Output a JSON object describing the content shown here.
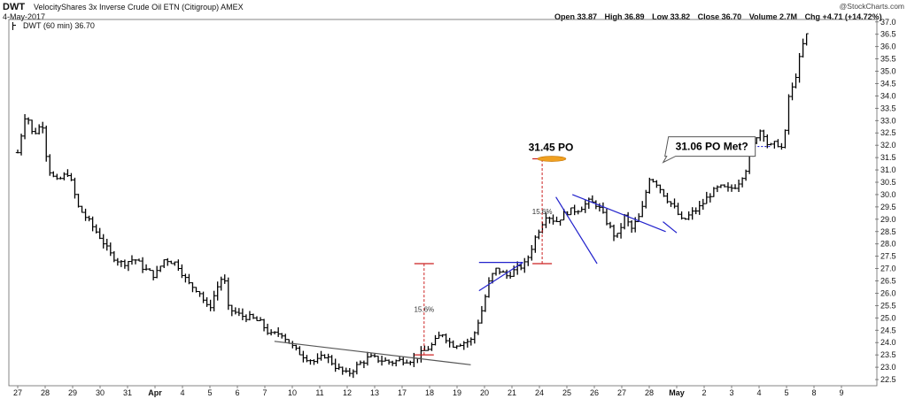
{
  "header": {
    "ticker": "DWT",
    "company": "VelocityShares 3x Inverse Crude Oil ETN (Citigroup)  AMEX",
    "date": "4-May-2017",
    "copyright": "@StockCharts.com",
    "legend": "DWT (60 min) 36.70",
    "ohlc": {
      "open": "Open 33.87",
      "high": "High 36.89",
      "low": "Low 33.82",
      "close": "Close 36.70",
      "volume": "Volume 2.7M",
      "change": "Chg +4.71 (+14.72%)"
    }
  },
  "chart_data": {
    "type": "ohlc",
    "interval": "60 min",
    "ylim": [
      22.25,
      37.1
    ],
    "y_axis_side": "right",
    "y_ticks": [
      22.5,
      23.0,
      23.5,
      24.0,
      24.5,
      25.0,
      25.5,
      26.0,
      26.5,
      27.0,
      27.5,
      28.0,
      28.5,
      29.0,
      29.5,
      30.0,
      30.5,
      31.0,
      31.5,
      32.0,
      32.5,
      33.0,
      33.5,
      34.0,
      34.5,
      35.0,
      35.5,
      36.0,
      36.5,
      37.0
    ],
    "x_tick_labels": [
      "27",
      "28",
      "29",
      "30",
      "31",
      "Apr",
      "4",
      "5",
      "6",
      "7",
      "10",
      "11",
      "12",
      "13",
      "17",
      "18",
      "19",
      "20",
      "21",
      "24",
      "25",
      "26",
      "27",
      "28",
      "May",
      "2",
      "3",
      "4",
      "5",
      "8",
      "9"
    ],
    "grid": false,
    "price_path": [
      [
        0,
        31.7
      ],
      [
        0.3,
        33.4
      ],
      [
        0.55,
        32.4
      ],
      [
        0.9,
        32.9
      ],
      [
        1.1,
        31.1
      ],
      [
        1.4,
        30.5
      ],
      [
        1.85,
        30.9
      ],
      [
        2.2,
        29.5
      ],
      [
        2.6,
        28.9
      ],
      [
        3.05,
        28.2
      ],
      [
        3.35,
        27.6
      ],
      [
        3.8,
        27.2
      ],
      [
        4.25,
        27.4
      ],
      [
        4.6,
        27.0
      ],
      [
        5.0,
        26.7
      ],
      [
        5.35,
        27.4
      ],
      [
        5.8,
        27.2
      ],
      [
        6.2,
        26.4
      ],
      [
        6.6,
        26.1
      ],
      [
        6.95,
        25.3
      ],
      [
        7.25,
        26.2
      ],
      [
        7.5,
        26.8
      ],
      [
        7.65,
        25.4
      ],
      [
        8.1,
        25.1
      ],
      [
        8.5,
        25.0
      ],
      [
        8.85,
        24.8
      ],
      [
        9.2,
        24.3
      ],
      [
        9.6,
        24.4
      ],
      [
        10.1,
        23.7
      ],
      [
        10.5,
        23.4
      ],
      [
        10.85,
        23.2
      ],
      [
        11.2,
        23.5
      ],
      [
        11.6,
        23.0
      ],
      [
        12.0,
        22.7
      ],
      [
        12.4,
        23.1
      ],
      [
        12.8,
        23.4
      ],
      [
        13.2,
        23.3
      ],
      [
        13.6,
        23.2
      ],
      [
        14.0,
        23.3
      ],
      [
        14.4,
        23.3
      ],
      [
        14.75,
        23.6
      ],
      [
        15.1,
        23.9
      ],
      [
        15.45,
        24.4
      ],
      [
        15.8,
        23.9
      ],
      [
        16.2,
        24.0
      ],
      [
        16.55,
        24.1
      ],
      [
        16.9,
        25.3
      ],
      [
        17.2,
        26.6
      ],
      [
        17.45,
        27.0
      ],
      [
        17.8,
        26.7
      ],
      [
        18.2,
        27.0
      ],
      [
        18.5,
        27.2
      ],
      [
        18.9,
        28.4
      ],
      [
        19.25,
        29.2
      ],
      [
        19.6,
        28.9
      ],
      [
        20.0,
        29.3
      ],
      [
        20.4,
        29.4
      ],
      [
        20.8,
        29.7
      ],
      [
        21.1,
        29.6
      ],
      [
        21.45,
        28.9
      ],
      [
        21.8,
        28.2
      ],
      [
        22.1,
        29.1
      ],
      [
        22.35,
        28.6
      ],
      [
        22.7,
        29.2
      ],
      [
        23.0,
        30.7
      ],
      [
        23.25,
        30.5
      ],
      [
        23.6,
        29.9
      ],
      [
        23.95,
        29.4
      ],
      [
        24.2,
        28.9
      ],
      [
        24.5,
        29.2
      ],
      [
        24.85,
        29.5
      ],
      [
        25.2,
        30.0
      ],
      [
        25.55,
        30.3
      ],
      [
        25.9,
        30.2
      ],
      [
        26.2,
        30.4
      ],
      [
        26.55,
        31.1
      ],
      [
        26.85,
        32.3
      ],
      [
        27.1,
        32.7
      ],
      [
        27.35,
        31.9
      ],
      [
        27.65,
        32.1
      ],
      [
        27.9,
        31.8
      ],
      [
        28.05,
        33.9
      ],
      [
        28.25,
        34.4
      ],
      [
        28.45,
        35.4
      ],
      [
        28.65,
        36.3
      ],
      [
        28.85,
        36.7
      ]
    ],
    "annotations": [
      {
        "type": "trendline",
        "color": "#555555",
        "from": [
          9.35,
          24.05
        ],
        "to": [
          16.5,
          23.1
        ]
      },
      {
        "type": "trendline",
        "color": "#2222cc",
        "from": [
          16.8,
          26.1
        ],
        "to": [
          18.4,
          27.25
        ]
      },
      {
        "type": "trendline",
        "color": "#2222cc",
        "from": [
          16.8,
          27.25
        ],
        "to": [
          18.4,
          27.25
        ]
      },
      {
        "type": "trendline",
        "color": "#2222cc",
        "from": [
          19.6,
          29.9
        ],
        "to": [
          21.1,
          27.2
        ]
      },
      {
        "type": "trendline",
        "color": "#2222cc",
        "from": [
          20.2,
          30.0
        ],
        "to": [
          23.6,
          28.5
        ]
      },
      {
        "type": "trendline",
        "color": "#2222cc",
        "from": [
          23.5,
          28.9
        ],
        "to": [
          24.0,
          28.45
        ]
      },
      {
        "type": "measure",
        "color": "#cc2222",
        "x": 14.8,
        "y_from": 23.5,
        "y_to": 27.2,
        "label": "15.6%"
      },
      {
        "type": "measure",
        "color": "#cc2222",
        "x": 19.1,
        "y_from": 27.2,
        "y_to": 31.45,
        "label": "15.6%"
      },
      {
        "type": "target",
        "color": "#f0a020",
        "x": 19.45,
        "y": 31.45,
        "label": "31.45 PO"
      },
      {
        "type": "hline",
        "color": "#2222cc",
        "style": "dotted",
        "y": 31.95,
        "x_from": 26.3,
        "x_to": 27.4
      },
      {
        "type": "callout",
        "label": "31.06 PO Met?",
        "x": 23.7,
        "y": 31.95
      }
    ]
  }
}
